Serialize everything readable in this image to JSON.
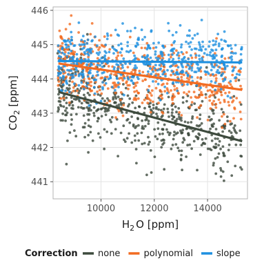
{
  "chart_data": {
    "type": "scatter",
    "xlabel": {
      "base": "H",
      "sub": "2",
      "rest": "O [ppm]"
    },
    "ylabel": {
      "base": "CO",
      "sub": "2",
      "rest": " [ppm]"
    },
    "xlim": [
      8200,
      15500
    ],
    "ylim": [
      440.5,
      446.1
    ],
    "x_ticks": [
      10000,
      12000,
      14000
    ],
    "y_ticks": [
      441,
      442,
      443,
      444,
      445,
      446
    ],
    "grid": true,
    "legend_position": "bottom",
    "legend_title": "Correction",
    "series": [
      {
        "name": "none",
        "color": "#3d4a3d",
        "fit": {
          "x": [
            8400,
            15300
          ],
          "y": [
            443.62,
            442.18
          ]
        },
        "noise_sd": 0.62
      },
      {
        "name": "polynomial",
        "color": "#f26b21",
        "fit": {
          "x": [
            8400,
            15300
          ],
          "y": [
            444.45,
            443.68
          ]
        },
        "noise_sd": 0.48
      },
      {
        "name": "slope",
        "color": "#1e90e0",
        "fit": {
          "x": [
            8400,
            15300
          ],
          "y": [
            444.52,
            444.48
          ]
        },
        "noise_sd": 0.42
      }
    ],
    "points_per_series": 560
  }
}
